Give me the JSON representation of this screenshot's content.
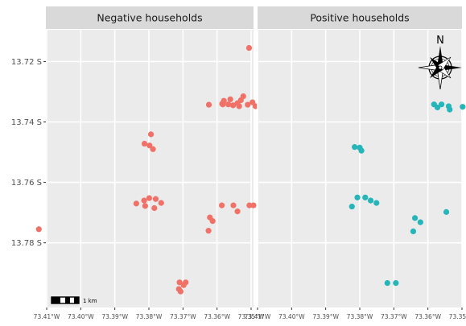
{
  "map": {
    "panels": [
      {
        "title": "Negative households",
        "color": "#F07167",
        "points": [
          [
            -73.3506,
            13.7155
          ],
          [
            -73.3523,
            13.7315
          ],
          [
            -73.3561,
            13.7325
          ],
          [
            -73.358,
            13.733
          ],
          [
            -73.3553,
            13.7345
          ],
          [
            -73.3535,
            13.7348
          ],
          [
            -73.3567,
            13.7342
          ],
          [
            -73.3585,
            13.734
          ],
          [
            -73.351,
            13.7343
          ],
          [
            -73.3487,
            13.7348
          ],
          [
            -73.3496,
            13.7335
          ],
          [
            -73.3475,
            13.7353
          ],
          [
            -73.3456,
            13.7363
          ],
          [
            -73.353,
            13.7328
          ],
          [
            -73.354,
            13.7338
          ],
          [
            -73.3624,
            13.7343
          ],
          [
            -73.346,
            13.7333
          ],
          [
            -73.3411,
            13.737
          ],
          [
            -73.3583,
            13.7342
          ],
          [
            -73.3794,
            13.7441
          ],
          [
            -73.3813,
            13.7472
          ],
          [
            -73.3798,
            13.7478
          ],
          [
            -73.3788,
            13.749
          ],
          [
            -73.3799,
            13.7652
          ],
          [
            -73.3814,
            13.766
          ],
          [
            -73.378,
            13.7655
          ],
          [
            -73.3764,
            13.7668
          ],
          [
            -73.3837,
            13.767
          ],
          [
            -73.3811,
            13.7678
          ],
          [
            -73.3784,
            13.7685
          ],
          [
            -73.3586,
            13.7676
          ],
          [
            -73.3552,
            13.7676
          ],
          [
            -73.3505,
            13.7676
          ],
          [
            -73.3493,
            13.7676
          ],
          [
            -73.354,
            13.7696
          ],
          [
            -73.3621,
            13.7716
          ],
          [
            -73.3613,
            13.7728
          ],
          [
            -73.3625,
            13.776
          ],
          [
            -73.4123,
            13.7755
          ],
          [
            -73.371,
            13.7931
          ],
          [
            -73.3692,
            13.7931
          ],
          [
            -73.3698,
            13.794
          ],
          [
            -73.3712,
            13.7953
          ],
          [
            -73.3707,
            13.7961
          ]
        ]
      },
      {
        "title": "Positive households",
        "color": "#26B5B8",
        "points": [
          [
            -73.3582,
            13.7342
          ],
          [
            -73.356,
            13.7342
          ],
          [
            -73.3539,
            13.7348
          ],
          [
            -73.3572,
            13.7352
          ],
          [
            -73.3536,
            13.7359
          ],
          [
            -73.3498,
            13.735
          ],
          [
            -73.3476,
            13.7372
          ],
          [
            -73.3815,
            13.7483
          ],
          [
            -73.38,
            13.7485
          ],
          [
            -73.3795,
            13.7495
          ],
          [
            -73.3807,
            13.765
          ],
          [
            -73.3784,
            13.765
          ],
          [
            -73.3768,
            13.766
          ],
          [
            -73.3751,
            13.7668
          ],
          [
            -73.3823,
            13.768
          ],
          [
            -73.3638,
            13.7718
          ],
          [
            -73.3622,
            13.7732
          ],
          [
            -73.3643,
            13.7762
          ],
          [
            -73.3546,
            13.7698
          ],
          [
            -73.3719,
            13.7933
          ],
          [
            -73.3694,
            13.7933
          ]
        ]
      }
    ],
    "y_ticks": [
      {
        "value": 13.72,
        "label": "13.72 S"
      },
      {
        "value": 13.74,
        "label": "13.74 S"
      },
      {
        "value": 13.76,
        "label": "13.76 S"
      },
      {
        "value": 13.78,
        "label": "13.78 S"
      }
    ],
    "x_ticks": [
      {
        "value": -73.41,
        "label": "73.41°W"
      },
      {
        "value": -73.4,
        "label": "73.40°W"
      },
      {
        "value": -73.39,
        "label": "73.39°W"
      },
      {
        "value": -73.38,
        "label": "73.38°W"
      },
      {
        "value": -73.37,
        "label": "73.37°W"
      },
      {
        "value": -73.36,
        "label": "73.36°W"
      },
      {
        "value": -73.35,
        "label": "73.35°W"
      }
    ],
    "lon_range": [
      -73.41,
      -73.35
    ],
    "lat_range": [
      13.7095,
      13.8014
    ],
    "scale_bar_label": "1 km",
    "north_label": "N"
  }
}
